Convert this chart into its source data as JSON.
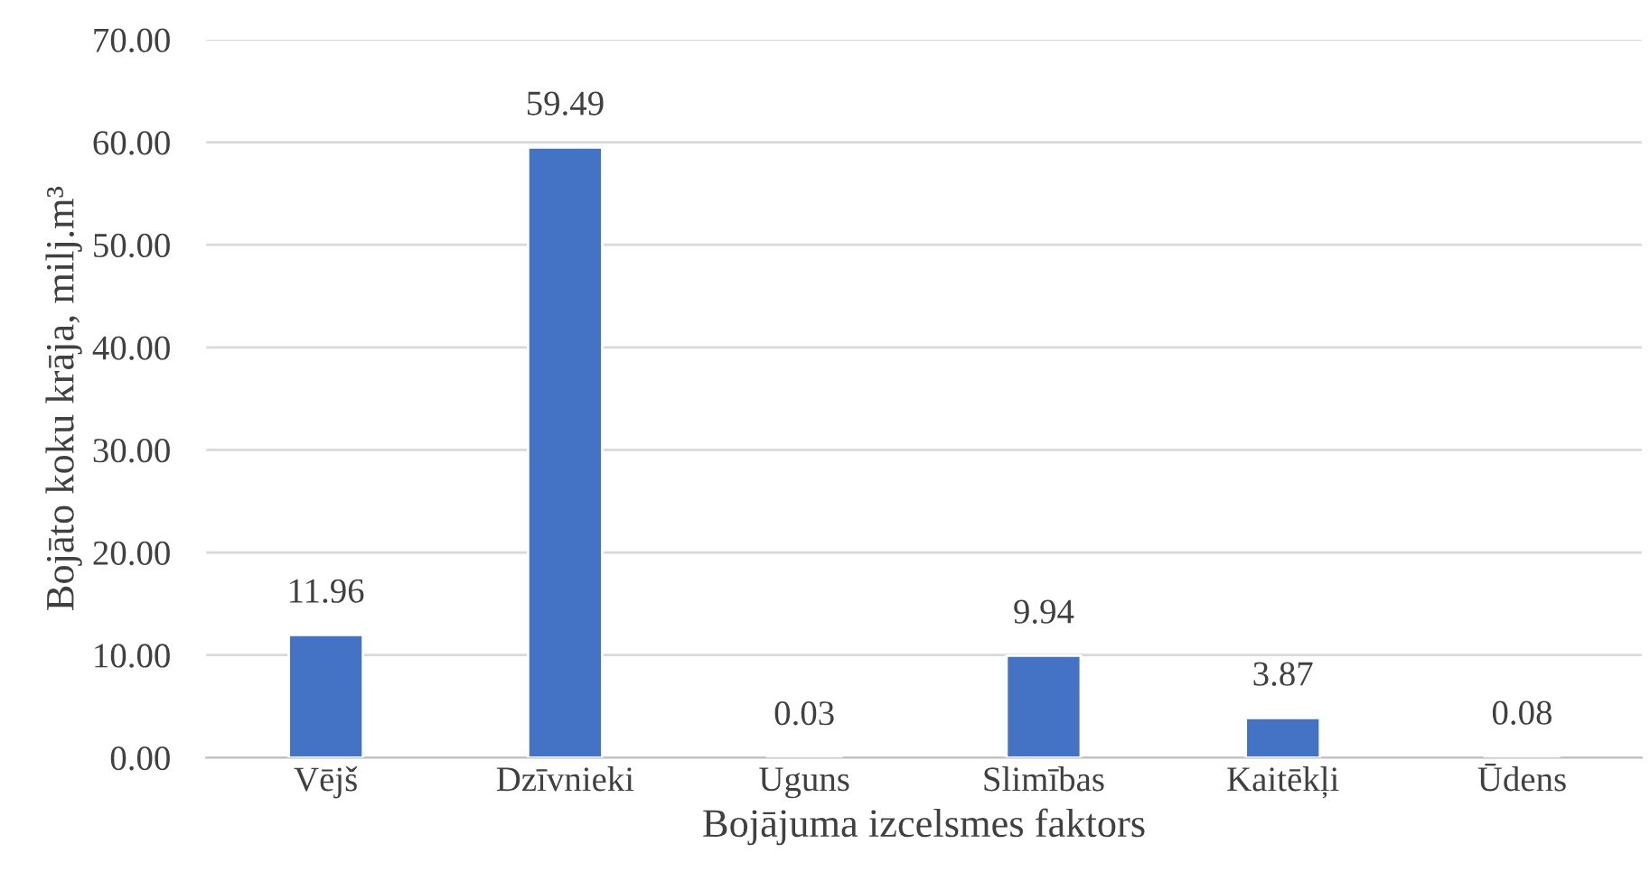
{
  "chart_data": {
    "type": "bar",
    "xlabel": "Bojājuma izcelsmes faktors",
    "ylabel": "Bojāto koku krāja, milj.m³",
    "categories": [
      "Vējš",
      "Dzīvnieki",
      "Uguns",
      "Slimības",
      "Kaitēkļi",
      "Ūdens"
    ],
    "values": [
      11.96,
      59.49,
      0.03,
      9.94,
      3.87,
      0.08
    ],
    "color": "#4472c4",
    "ylim": [
      0,
      70
    ],
    "yticks": [
      {
        "value": 0,
        "label": "0.00"
      },
      {
        "value": 10,
        "label": "10.00"
      },
      {
        "value": 20,
        "label": "20.00"
      },
      {
        "value": 30,
        "label": "30.00"
      },
      {
        "value": 40,
        "label": "40.00"
      },
      {
        "value": 50,
        "label": "50.00"
      },
      {
        "value": 60,
        "label": "60.00"
      },
      {
        "value": 70,
        "label": "70.00"
      }
    ],
    "grid": "y",
    "data_labels": true
  }
}
